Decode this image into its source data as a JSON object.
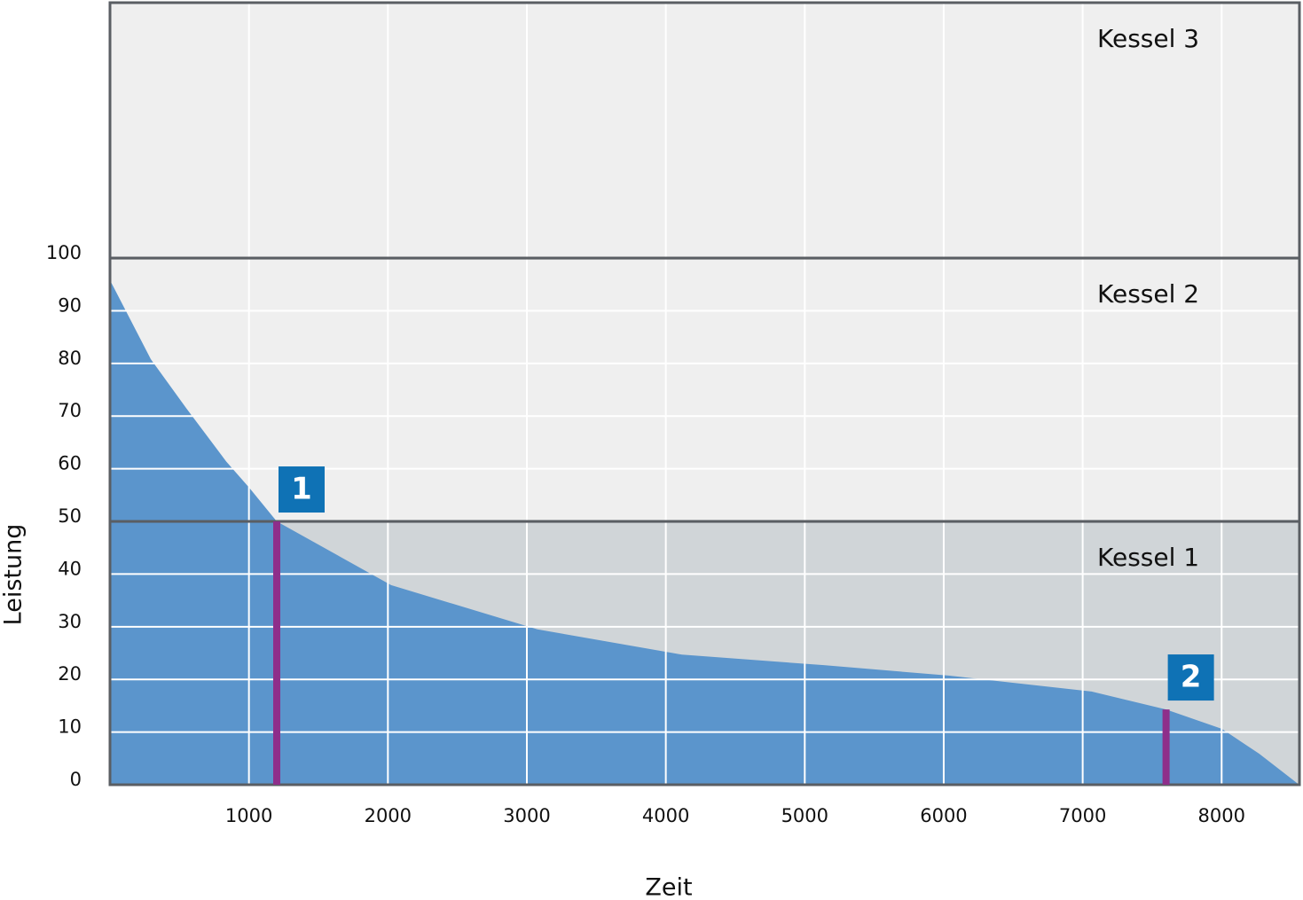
{
  "chart_data": {
    "type": "area",
    "x_label": "Zeit",
    "y_label": "Leistung",
    "x": [
      0,
      294,
      549,
      836,
      1002,
      1200,
      2023,
      3076,
      4116,
      5137,
      6043,
      7064,
      7600,
      8002,
      8270,
      8558
    ],
    "values": [
      95.8,
      80.8,
      71.5,
      61.4,
      56.4,
      50,
      37.9,
      29.5,
      24.7,
      22.7,
      20.7,
      17.7,
      14.3,
      10.6,
      5.9,
      0
    ],
    "color": "#5b95cc",
    "xlim": [
      0,
      8560
    ],
    "ylim": [
      0,
      148.5
    ],
    "xticks": [
      1000,
      2000,
      3000,
      4000,
      5000,
      6000,
      7000,
      8000
    ],
    "yticks": [
      0,
      10,
      20,
      30,
      40,
      50,
      60,
      70,
      80,
      90,
      100
    ],
    "grid": true,
    "bands": [
      {
        "name": "Kessel 1",
        "from": 0,
        "to": 50,
        "color": "#d0d5d8"
      },
      {
        "name": "Kessel 2",
        "from": 50,
        "to": 100,
        "color": "#efefef"
      },
      {
        "name": "Kessel 3",
        "from": 100,
        "to": 148.5,
        "color": "#efefef"
      }
    ],
    "markers": [
      {
        "label": "1",
        "x": 1200,
        "value": 50,
        "color": "#8e2e8a",
        "box_color": "#0f72b5"
      },
      {
        "label": "2",
        "x": 7600,
        "value": 14.3,
        "color": "#8e2e8a",
        "box_color": "#0f72b5"
      }
    ]
  }
}
